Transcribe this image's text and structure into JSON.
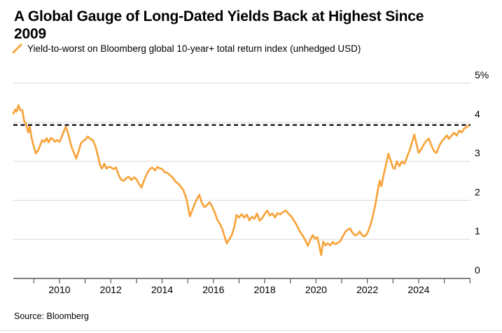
{
  "header": {
    "title": "A Global Gauge of Long-Dated Yields Back at Highest Since 2009",
    "title_lines": [
      "A Global Gauge of Long-Dated Yields Back at Highest Since",
      "2009"
    ]
  },
  "legend": {
    "label": "Yield-to-worst on Bloomberg global 10-year+ total return index (unhedged USD)"
  },
  "footer": {
    "source": "Source: Bloomberg"
  },
  "colors": {
    "series": "#F7A43C",
    "grid": "#D8D8D8",
    "axis": "#55565A",
    "dashed": "#141414",
    "text": "#000000"
  },
  "chart_data": {
    "type": "line",
    "title": "A Global Gauge of Long-Dated Yields Back at Highest Since 2009",
    "legend": [
      "Yield-to-worst on Bloomberg global 10-year+ total return index (unhedged USD)"
    ],
    "xlim": [
      2008.2,
      2026.02
    ],
    "ylim": [
      0,
      5
    ],
    "grid": "horizontal",
    "legend_position": "top-left",
    "y_ticks": [
      {
        "value": 5,
        "label": "5%"
      },
      {
        "value": 4,
        "label": "4"
      },
      {
        "value": 3,
        "label": "3"
      },
      {
        "value": 2,
        "label": "2"
      },
      {
        "value": 1,
        "label": "1"
      },
      {
        "value": 0,
        "label": "0"
      }
    ],
    "x_minor_ticks": [
      2009,
      2010,
      2011,
      2012,
      2013,
      2014,
      2015,
      2016,
      2017,
      2018,
      2019,
      2020,
      2021,
      2022,
      2023,
      2024,
      2025,
      2026
    ],
    "x_tick_labels": [
      {
        "value": 2010,
        "label": "2010"
      },
      {
        "value": 2012,
        "label": "2012"
      },
      {
        "value": 2014,
        "label": "2014"
      },
      {
        "value": 2016,
        "label": "2016"
      },
      {
        "value": 2018,
        "label": "2018"
      },
      {
        "value": 2020,
        "label": "2020"
      },
      {
        "value": 2022,
        "label": "2022"
      },
      {
        "value": 2024,
        "label": "2024"
      }
    ],
    "reference_line": {
      "value": 3.93,
      "style": "dashed"
    },
    "series": [
      {
        "name": "Yield-to-worst on Bloomberg global 10-year+ total return index (unhedged USD)",
        "points": [
          [
            2008.2,
            4.22
          ],
          [
            2008.28,
            4.35
          ],
          [
            2008.33,
            4.28
          ],
          [
            2008.4,
            4.42
          ],
          [
            2008.47,
            4.3
          ],
          [
            2008.55,
            4.33
          ],
          [
            2008.62,
            4.05
          ],
          [
            2008.7,
            3.95
          ],
          [
            2008.78,
            3.72
          ],
          [
            2008.84,
            3.9
          ],
          [
            2008.92,
            3.6
          ],
          [
            2009.0,
            3.38
          ],
          [
            2009.08,
            3.18
          ],
          [
            2009.17,
            3.28
          ],
          [
            2009.25,
            3.44
          ],
          [
            2009.33,
            3.55
          ],
          [
            2009.42,
            3.48
          ],
          [
            2009.5,
            3.58
          ],
          [
            2009.58,
            3.5
          ],
          [
            2009.67,
            3.62
          ],
          [
            2009.75,
            3.55
          ],
          [
            2009.83,
            3.48
          ],
          [
            2009.92,
            3.55
          ],
          [
            2010.0,
            3.52
          ],
          [
            2010.08,
            3.62
          ],
          [
            2010.17,
            3.75
          ],
          [
            2010.25,
            3.88
          ],
          [
            2010.33,
            3.75
          ],
          [
            2010.42,
            3.5
          ],
          [
            2010.5,
            3.3
          ],
          [
            2010.58,
            3.18
          ],
          [
            2010.65,
            3.08
          ],
          [
            2010.75,
            3.28
          ],
          [
            2010.83,
            3.45
          ],
          [
            2010.92,
            3.5
          ],
          [
            2011.0,
            3.55
          ],
          [
            2011.1,
            3.66
          ],
          [
            2011.2,
            3.58
          ],
          [
            2011.3,
            3.52
          ],
          [
            2011.4,
            3.38
          ],
          [
            2011.5,
            3.15
          ],
          [
            2011.58,
            2.92
          ],
          [
            2011.65,
            2.8
          ],
          [
            2011.75,
            2.92
          ],
          [
            2011.83,
            2.82
          ],
          [
            2011.92,
            2.88
          ],
          [
            2012.0,
            2.85
          ],
          [
            2012.1,
            2.78
          ],
          [
            2012.2,
            2.84
          ],
          [
            2012.3,
            2.68
          ],
          [
            2012.4,
            2.54
          ],
          [
            2012.5,
            2.48
          ],
          [
            2012.6,
            2.55
          ],
          [
            2012.7,
            2.62
          ],
          [
            2012.8,
            2.54
          ],
          [
            2012.9,
            2.58
          ],
          [
            2013.0,
            2.52
          ],
          [
            2013.1,
            2.42
          ],
          [
            2013.2,
            2.35
          ],
          [
            2013.3,
            2.52
          ],
          [
            2013.42,
            2.68
          ],
          [
            2013.53,
            2.8
          ],
          [
            2013.62,
            2.86
          ],
          [
            2013.72,
            2.78
          ],
          [
            2013.82,
            2.84
          ],
          [
            2013.92,
            2.8
          ],
          [
            2014.0,
            2.82
          ],
          [
            2014.1,
            2.74
          ],
          [
            2014.2,
            2.7
          ],
          [
            2014.3,
            2.63
          ],
          [
            2014.42,
            2.58
          ],
          [
            2014.52,
            2.5
          ],
          [
            2014.62,
            2.44
          ],
          [
            2014.72,
            2.34
          ],
          [
            2014.82,
            2.26
          ],
          [
            2014.92,
            2.12
          ],
          [
            2015.0,
            1.9
          ],
          [
            2015.08,
            1.58
          ],
          [
            2015.17,
            1.72
          ],
          [
            2015.25,
            1.88
          ],
          [
            2015.33,
            2.02
          ],
          [
            2015.45,
            2.14
          ],
          [
            2015.55,
            1.92
          ],
          [
            2015.65,
            1.82
          ],
          [
            2015.75,
            1.9
          ],
          [
            2015.85,
            1.96
          ],
          [
            2015.95,
            1.82
          ],
          [
            2016.05,
            1.68
          ],
          [
            2016.15,
            1.52
          ],
          [
            2016.25,
            1.42
          ],
          [
            2016.35,
            1.25
          ],
          [
            2016.45,
            1.02
          ],
          [
            2016.52,
            0.9
          ],
          [
            2016.62,
            1.02
          ],
          [
            2016.72,
            1.12
          ],
          [
            2016.82,
            1.32
          ],
          [
            2016.9,
            1.62
          ],
          [
            2017.0,
            1.58
          ],
          [
            2017.1,
            1.66
          ],
          [
            2017.2,
            1.54
          ],
          [
            2017.3,
            1.62
          ],
          [
            2017.4,
            1.5
          ],
          [
            2017.5,
            1.6
          ],
          [
            2017.6,
            1.52
          ],
          [
            2017.7,
            1.64
          ],
          [
            2017.8,
            1.48
          ],
          [
            2017.9,
            1.56
          ],
          [
            2018.0,
            1.66
          ],
          [
            2018.1,
            1.72
          ],
          [
            2018.2,
            1.6
          ],
          [
            2018.3,
            1.68
          ],
          [
            2018.4,
            1.58
          ],
          [
            2018.5,
            1.66
          ],
          [
            2018.6,
            1.62
          ],
          [
            2018.7,
            1.7
          ],
          [
            2018.82,
            1.76
          ],
          [
            2018.92,
            1.66
          ],
          [
            2019.02,
            1.58
          ],
          [
            2019.12,
            1.5
          ],
          [
            2019.25,
            1.38
          ],
          [
            2019.38,
            1.2
          ],
          [
            2019.5,
            1.06
          ],
          [
            2019.6,
            0.94
          ],
          [
            2019.68,
            0.85
          ],
          [
            2019.78,
            1.02
          ],
          [
            2019.88,
            1.1
          ],
          [
            2019.95,
            1.0
          ],
          [
            2020.05,
            1.06
          ],
          [
            2020.12,
            0.88
          ],
          [
            2020.2,
            0.6
          ],
          [
            2020.28,
            0.92
          ],
          [
            2020.37,
            0.84
          ],
          [
            2020.45,
            0.92
          ],
          [
            2020.55,
            0.86
          ],
          [
            2020.65,
            0.92
          ],
          [
            2020.75,
            0.86
          ],
          [
            2020.85,
            0.92
          ],
          [
            2020.95,
            0.98
          ],
          [
            2021.05,
            1.08
          ],
          [
            2021.15,
            1.18
          ],
          [
            2021.25,
            1.26
          ],
          [
            2021.33,
            1.3
          ],
          [
            2021.42,
            1.18
          ],
          [
            2021.52,
            1.08
          ],
          [
            2021.62,
            1.12
          ],
          [
            2021.7,
            1.22
          ],
          [
            2021.8,
            1.12
          ],
          [
            2021.9,
            1.06
          ],
          [
            2022.0,
            1.14
          ],
          [
            2022.1,
            1.34
          ],
          [
            2022.2,
            1.58
          ],
          [
            2022.3,
            1.85
          ],
          [
            2022.4,
            2.2
          ],
          [
            2022.48,
            2.5
          ],
          [
            2022.55,
            2.38
          ],
          [
            2022.63,
            2.65
          ],
          [
            2022.72,
            2.88
          ],
          [
            2022.82,
            3.18
          ],
          [
            2022.9,
            3.05
          ],
          [
            2023.0,
            2.85
          ],
          [
            2023.07,
            2.8
          ],
          [
            2023.15,
            2.98
          ],
          [
            2023.25,
            2.88
          ],
          [
            2023.35,
            3.02
          ],
          [
            2023.45,
            2.94
          ],
          [
            2023.55,
            3.1
          ],
          [
            2023.65,
            3.28
          ],
          [
            2023.75,
            3.52
          ],
          [
            2023.83,
            3.7
          ],
          [
            2023.92,
            3.42
          ],
          [
            2024.0,
            3.2
          ],
          [
            2024.1,
            3.32
          ],
          [
            2024.2,
            3.45
          ],
          [
            2024.3,
            3.52
          ],
          [
            2024.4,
            3.56
          ],
          [
            2024.5,
            3.4
          ],
          [
            2024.6,
            3.28
          ],
          [
            2024.7,
            3.22
          ],
          [
            2024.8,
            3.38
          ],
          [
            2024.9,
            3.5
          ],
          [
            2025.0,
            3.6
          ],
          [
            2025.1,
            3.68
          ],
          [
            2025.18,
            3.56
          ],
          [
            2025.28,
            3.64
          ],
          [
            2025.38,
            3.74
          ],
          [
            2025.48,
            3.68
          ],
          [
            2025.58,
            3.78
          ],
          [
            2025.68,
            3.72
          ],
          [
            2025.78,
            3.84
          ],
          [
            2025.88,
            3.9
          ],
          [
            2025.95,
            3.93
          ]
        ]
      }
    ]
  }
}
